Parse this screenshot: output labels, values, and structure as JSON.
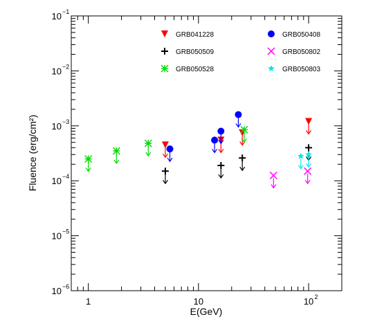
{
  "chart_data": {
    "type": "scatter",
    "title": "",
    "xlabel": "E(GeV)",
    "ylabel": "Fluence (erg/cm²)",
    "x_scale": "log",
    "y_scale": "log",
    "xlim": [
      0.7,
      200
    ],
    "ylim": [
      1e-06,
      0.1
    ],
    "grid": false,
    "legend_position": "top",
    "x_tick_labels": [
      {
        "value": 1,
        "base": "1",
        "exp": ""
      },
      {
        "value": 10,
        "base": "10",
        "exp": ""
      },
      {
        "value": 100,
        "base": "10",
        "exp": "2"
      }
    ],
    "y_tick_labels": [
      {
        "value": 1e-06,
        "base": "10",
        "exp": "−6"
      },
      {
        "value": 1e-05,
        "base": "10",
        "exp": "−5"
      },
      {
        "value": 0.0001,
        "base": "10",
        "exp": "−4"
      },
      {
        "value": 0.001,
        "base": "10",
        "exp": "−3"
      },
      {
        "value": 0.01,
        "base": "10",
        "exp": "−2"
      },
      {
        "value": 0.1,
        "base": "10",
        "exp": "−1"
      }
    ],
    "upper_limits": true,
    "series": [
      {
        "name": "GRB041228",
        "marker": "triangle-down",
        "color": "#ff0000",
        "points": [
          {
            "x": 5,
            "y": 0.00045
          },
          {
            "x": 16,
            "y": 0.00055
          },
          {
            "x": 25,
            "y": 0.00075
          },
          {
            "x": 100,
            "y": 0.0012
          }
        ]
      },
      {
        "name": "GRB050408",
        "marker": "circle",
        "color": "#0000ff",
        "points": [
          {
            "x": 5.5,
            "y": 0.00038
          },
          {
            "x": 14,
            "y": 0.00055
          },
          {
            "x": 16,
            "y": 0.0008
          },
          {
            "x": 23,
            "y": 0.0016
          }
        ]
      },
      {
        "name": "GRB050509",
        "marker": "plus",
        "color": "#000000",
        "points": [
          {
            "x": 5,
            "y": 0.00015
          },
          {
            "x": 16,
            "y": 0.00019
          },
          {
            "x": 25,
            "y": 0.00026
          },
          {
            "x": 100,
            "y": 0.0004
          }
        ]
      },
      {
        "name": "GRB050802",
        "marker": "x",
        "color": "#ff00ff",
        "points": [
          {
            "x": 48,
            "y": 0.000125
          },
          {
            "x": 98,
            "y": 0.00015
          }
        ]
      },
      {
        "name": "GRB050528",
        "marker": "asterisk",
        "color": "#00dd00",
        "points": [
          {
            "x": 1,
            "y": 0.00025
          },
          {
            "x": 1.8,
            "y": 0.00035
          },
          {
            "x": 3.5,
            "y": 0.00048
          },
          {
            "x": 26,
            "y": 0.00085
          }
        ]
      },
      {
        "name": "GRB050803",
        "marker": "star",
        "color": "#00e5ee",
        "points": [
          {
            "x": 85,
            "y": 0.00028
          },
          {
            "x": 100,
            "y": 0.0003
          }
        ]
      }
    ]
  }
}
